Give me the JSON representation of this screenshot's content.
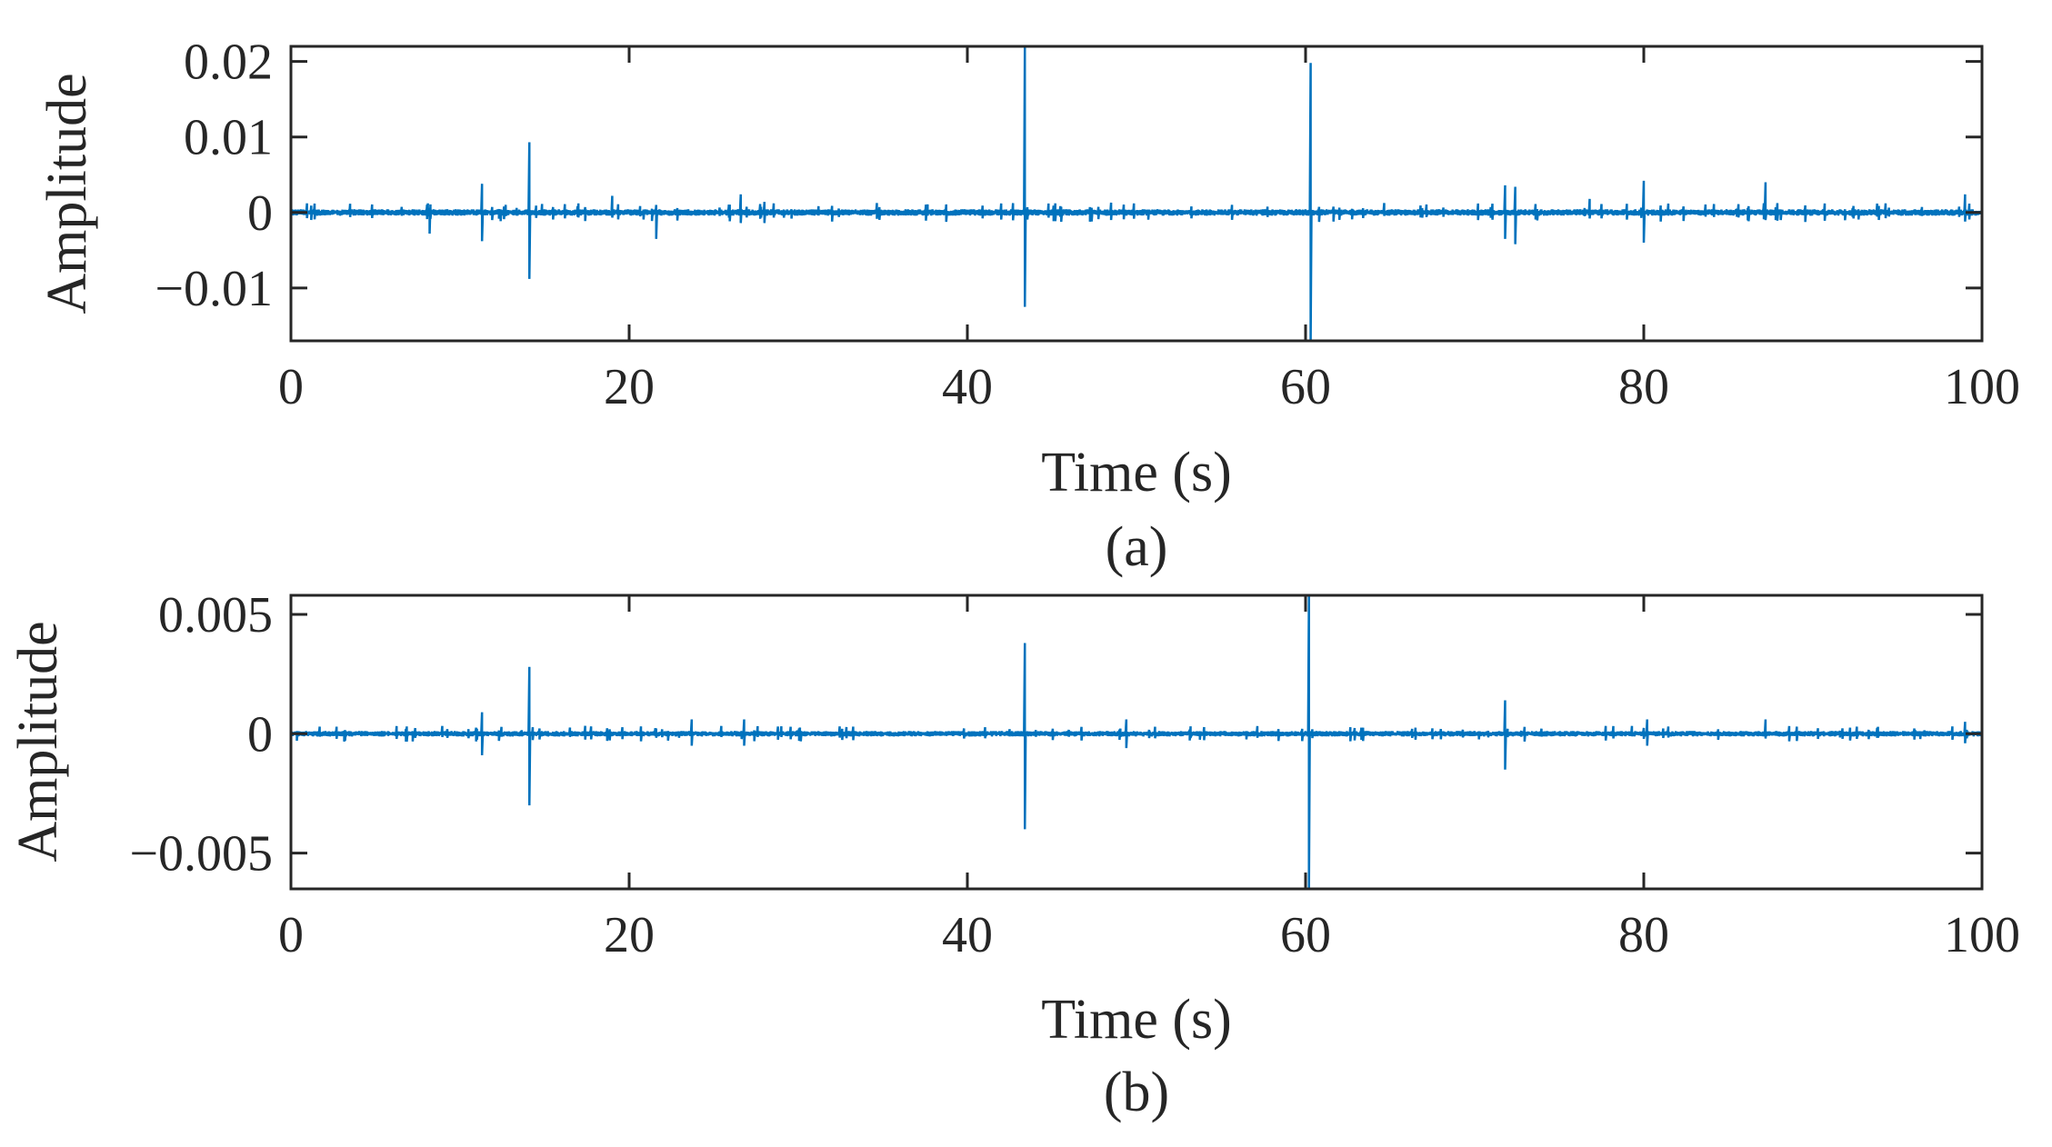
{
  "chart_data": [
    {
      "type": "line",
      "caption": "(a)",
      "xlabel": "Time (s)",
      "ylabel": "Amplitude",
      "xlim": [
        0,
        100
      ],
      "ylim": [
        -0.017,
        0.022
      ],
      "x_ticks": [
        0,
        20,
        40,
        60,
        80,
        100
      ],
      "x_tick_labels": [
        "0",
        "20",
        "40",
        "60",
        "80",
        "100"
      ],
      "y_ticks": [
        -0.01,
        0,
        0.01,
        0.02
      ],
      "y_tick_labels": [
        "−0.01",
        "0",
        "0.01",
        "0.02"
      ],
      "grid": false,
      "line_color": "#0072BD",
      "noise_level": 0.0003,
      "spikes": [
        {
          "t": 8.2,
          "max": 0.0006,
          "min": -0.0028
        },
        {
          "t": 11.3,
          "max": 0.0038,
          "min": -0.0038
        },
        {
          "t": 14.1,
          "max": 0.0093,
          "min": -0.0088
        },
        {
          "t": 19.0,
          "max": 0.0022,
          "min": -0.0006
        },
        {
          "t": 21.6,
          "max": 0.001,
          "min": -0.0035
        },
        {
          "t": 26.6,
          "max": 0.0024,
          "min": -0.0014
        },
        {
          "t": 28.0,
          "max": 0.0014,
          "min": -0.0014
        },
        {
          "t": 43.4,
          "max": 0.0225,
          "min": -0.0125
        },
        {
          "t": 48.5,
          "max": 0.0013,
          "min": -0.001
        },
        {
          "t": 60.3,
          "max": 0.0198,
          "min": -0.0172
        },
        {
          "t": 71.8,
          "max": 0.0036,
          "min": -0.0035
        },
        {
          "t": 72.4,
          "max": 0.0034,
          "min": -0.0042
        },
        {
          "t": 76.8,
          "max": 0.0018,
          "min": -0.0008
        },
        {
          "t": 80.0,
          "max": 0.0042,
          "min": -0.004
        },
        {
          "t": 87.2,
          "max": 0.004,
          "min": -0.001
        },
        {
          "t": 99.0,
          "max": 0.0024,
          "min": -0.0012
        }
      ]
    },
    {
      "type": "line",
      "caption": "(b)",
      "xlabel": "Time (s)",
      "ylabel": "Amplitude",
      "xlim": [
        0,
        100
      ],
      "ylim": [
        -0.0065,
        0.0058
      ],
      "x_ticks": [
        0,
        20,
        40,
        60,
        80,
        100
      ],
      "x_tick_labels": [
        "0",
        "20",
        "40",
        "60",
        "80",
        "100"
      ],
      "y_ticks": [
        -0.005,
        0,
        0.005
      ],
      "y_tick_labels": [
        "−0.005",
        "0",
        "0.005"
      ],
      "grid": false,
      "line_color": "#0072BD",
      "noise_level": 8e-05,
      "spikes": [
        {
          "t": 11.3,
          "max": 0.0009,
          "min": -0.0009
        },
        {
          "t": 14.1,
          "max": 0.0028,
          "min": -0.003
        },
        {
          "t": 23.7,
          "max": 0.0006,
          "min": -0.0005
        },
        {
          "t": 26.8,
          "max": 0.0006,
          "min": -0.0005
        },
        {
          "t": 43.4,
          "max": 0.0038,
          "min": -0.004
        },
        {
          "t": 49.4,
          "max": 0.0006,
          "min": -0.0006
        },
        {
          "t": 60.2,
          "max": 0.0058,
          "min": -0.0065
        },
        {
          "t": 71.8,
          "max": 0.0014,
          "min": -0.0015
        },
        {
          "t": 80.2,
          "max": 0.0006,
          "min": -0.0005
        },
        {
          "t": 87.2,
          "max": 0.0006,
          "min": -0.0002
        },
        {
          "t": 99.0,
          "max": 0.0005,
          "min": -0.0004
        }
      ]
    }
  ]
}
